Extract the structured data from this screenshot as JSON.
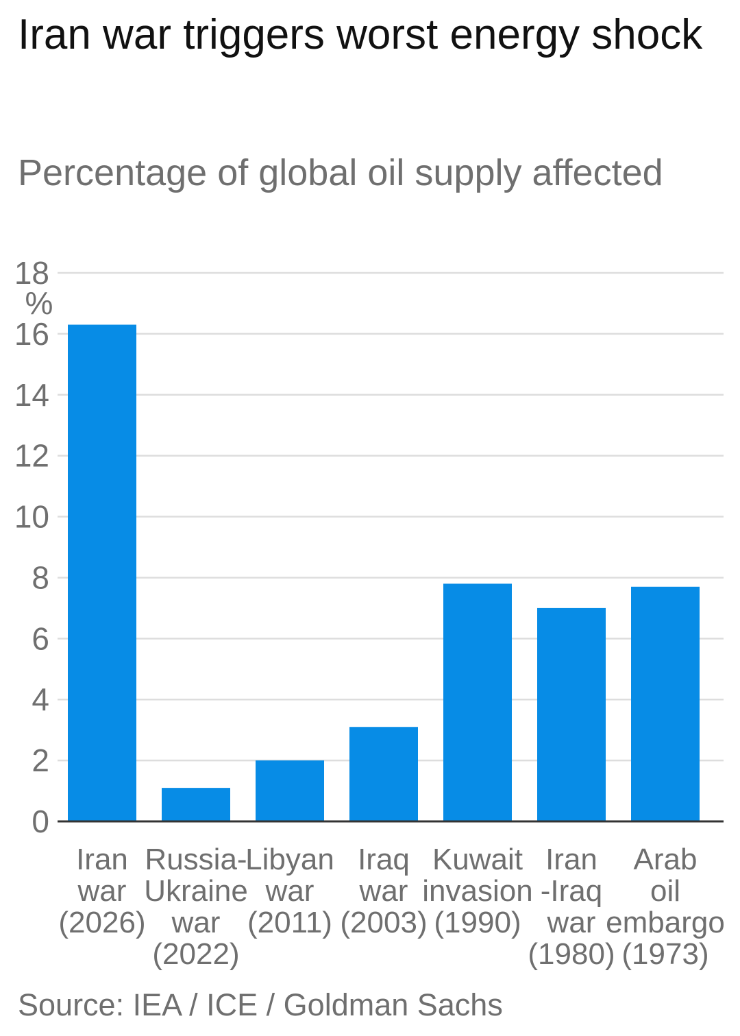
{
  "title": "Iran war triggers worst energy shock",
  "subtitle": "Percentage of global oil supply affected",
  "source": "Source: IEA / ICE / Goldman Sachs",
  "colors": {
    "bar": "#078ce6",
    "grid": "#dddddd",
    "axis": "#333333",
    "text_muted": "#6f6f6f",
    "title": "#111111"
  },
  "chart_data": {
    "type": "bar",
    "title": "Iran war triggers worst energy shock",
    "subtitle": "Percentage of global oil supply affected",
    "unit": "%",
    "categories": [
      [
        "Iran",
        "war",
        "(2026)"
      ],
      [
        "Russia-",
        "Ukraine",
        "war",
        "(2022)"
      ],
      [
        "Libyan",
        "war",
        "(2011)"
      ],
      [
        "Iraq",
        "war",
        "(2003)"
      ],
      [
        "Kuwait",
        "invasion",
        "(1990)"
      ],
      [
        "Iran",
        "-Iraq",
        "war",
        "(1980)"
      ],
      [
        "Arab",
        "oil",
        "embargo",
        "(1973)"
      ]
    ],
    "values": [
      16.3,
      1.1,
      2.0,
      3.1,
      7.8,
      7.0,
      7.7
    ],
    "yticks": [
      0,
      2,
      4,
      6,
      8,
      10,
      12,
      14,
      16,
      18
    ],
    "ylim": [
      0,
      18
    ],
    "grid": true,
    "legend": "none"
  }
}
